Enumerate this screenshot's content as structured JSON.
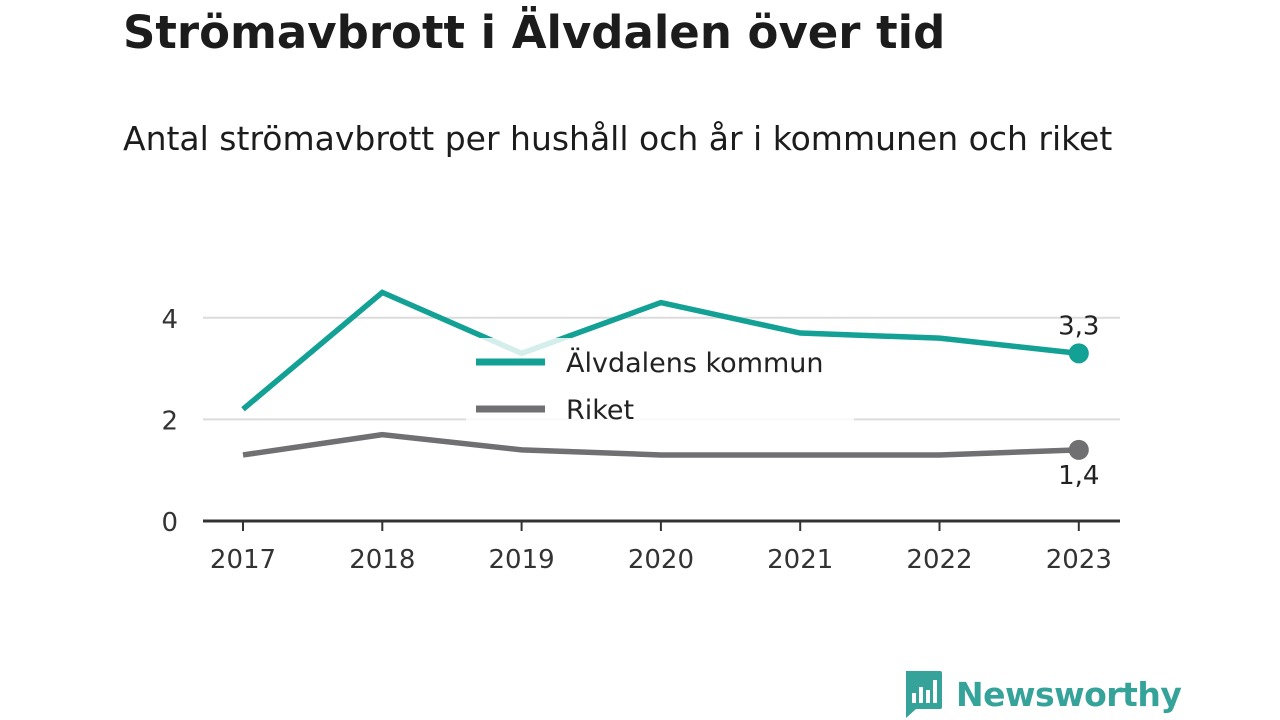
{
  "chart_data": {
    "type": "line",
    "title": "Strömavbrott i Älvdalen över tid",
    "subtitle": "Antal strömavbrott per hushåll och år i kommunen och riket",
    "x": [
      "2017",
      "2018",
      "2019",
      "2020",
      "2021",
      "2022",
      "2023"
    ],
    "y_ticks": [
      0,
      2,
      4
    ],
    "ylim": [
      0,
      4.6
    ],
    "grid": true,
    "legend_position": "center",
    "series": [
      {
        "name": "Älvdalens kommun",
        "color": "#13a095",
        "values": [
          2.2,
          4.5,
          3.3,
          4.3,
          3.7,
          3.6,
          3.3
        ],
        "end_label": "3,3"
      },
      {
        "name": "Riket",
        "color": "#707073",
        "values": [
          1.3,
          1.7,
          1.4,
          1.3,
          1.3,
          1.3,
          1.4
        ],
        "end_label": "1,4"
      }
    ]
  },
  "brand": {
    "name": "Newsworthy",
    "icon": "newsworthy-logo-icon",
    "color": "#36a39a"
  }
}
